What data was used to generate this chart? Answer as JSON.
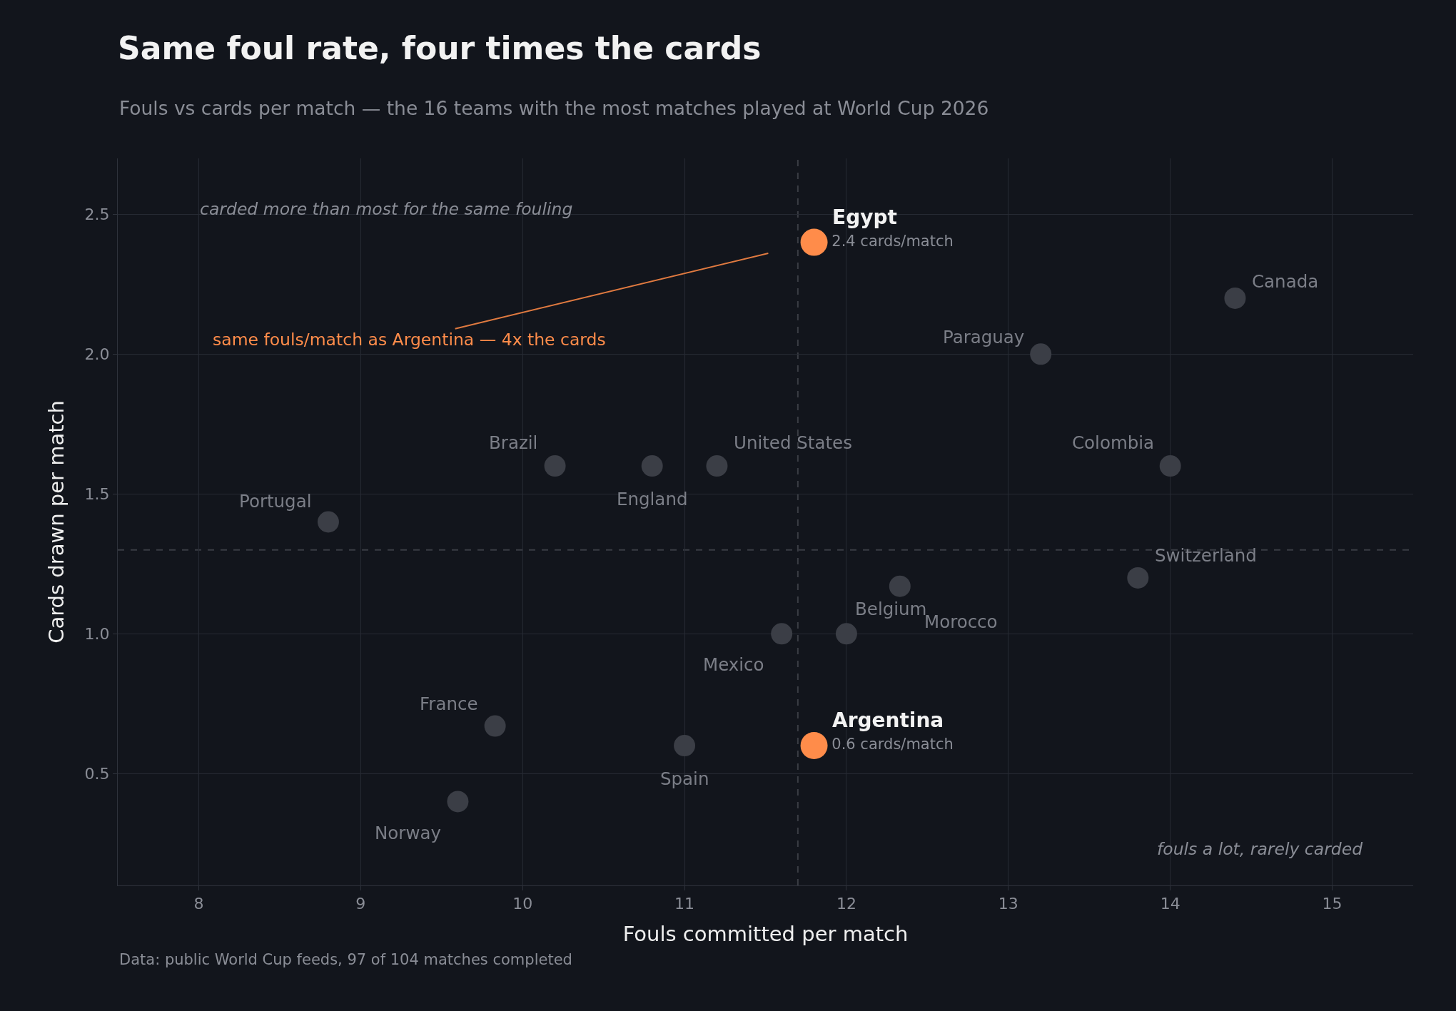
{
  "chart_data": {
    "type": "scatter",
    "title": "Same foul rate, four times the cards",
    "subtitle": "Fouls vs cards per match — the 16 teams with the most matches played at World Cup 2026",
    "xlabel": "Fouls committed per match",
    "ylabel": "Cards drawn per match",
    "series": [
      {
        "color": "#3b3e46",
        "x": [
          14.4,
          13.2,
          14.0,
          13.8,
          10.2,
          10.8,
          11.2,
          8.8,
          12.0,
          12.33,
          11.6,
          9.83,
          11.0,
          9.6
        ],
        "values": [
          2.2,
          2.0,
          1.6,
          1.2,
          1.6,
          1.6,
          1.6,
          1.4,
          1.0,
          1.17,
          1.0,
          0.67,
          0.6,
          0.4
        ]
      },
      {
        "color": "#ff8c4a",
        "x": [
          11.8,
          11.8
        ],
        "values": [
          2.4,
          0.6
        ],
        "value_labels": [
          "2.4 cards/match",
          "0.6 cards/match"
        ]
      }
    ],
    "xlim": [
      7.5,
      15.5
    ],
    "xticks": [
      8,
      9,
      10,
      11,
      12,
      13,
      14,
      15
    ],
    "ylim": [
      0.1,
      2.7
    ],
    "yticks": [
      0.5,
      {
        "value": 1,
        "label": "1.0"
      },
      1.5,
      {
        "value": 2,
        "label": "2.0"
      },
      2.5
    ],
    "ref_lines": [
      {
        "axis": "x",
        "value": 11.7,
        "line_style": "dashed",
        "color": "#3a3d44"
      },
      {
        "axis": "y",
        "value": 1.3,
        "line_style": "dashed",
        "color": "#3a3d44"
      }
    ],
    "grid": true,
    "marker": "circle",
    "annotations": [
      "carded more than most for the same fouling",
      "fouls a lot, rarely carded",
      {
        "text": "same fouls/match as Argentina — 4x the cards",
        "x": 11.8,
        "y": 2.4
      },
      {
        "text": "Canada",
        "x": 14.4,
        "y": 2.2
      },
      {
        "text": "Paraguay",
        "x": 13.2,
        "y": 2.0
      },
      {
        "text": "Colombia",
        "x": 14.0,
        "y": 1.6
      },
      {
        "text": "Switzerland",
        "x": 13.8,
        "y": 1.2
      },
      {
        "text": "Brazil",
        "x": 10.2,
        "y": 1.6
      },
      {
        "text": "England",
        "x": 10.8,
        "y": 1.6
      },
      {
        "text": "United States",
        "x": 11.2,
        "y": 1.6
      },
      {
        "text": "Portugal",
        "x": 8.8,
        "y": 1.4
      },
      {
        "text": "Belgium",
        "x": 12.0,
        "y": 1.0
      },
      {
        "text": "Morocco",
        "x": 12.33,
        "y": 1.17
      },
      {
        "text": "Mexico",
        "x": 11.6,
        "y": 1.0
      },
      {
        "text": "France",
        "x": 9.83,
        "y": 0.67
      },
      {
        "text": "Spain",
        "x": 11.0,
        "y": 0.6
      },
      {
        "text": "Norway",
        "x": 9.6,
        "y": 0.4
      },
      {
        "text": "Egypt",
        "x": 11.8,
        "y": 2.4
      },
      {
        "text": "Argentina",
        "x": 11.8,
        "y": 0.6
      },
      "Data: public World Cup feeds, 97 of 104 matches completed"
    ]
  }
}
